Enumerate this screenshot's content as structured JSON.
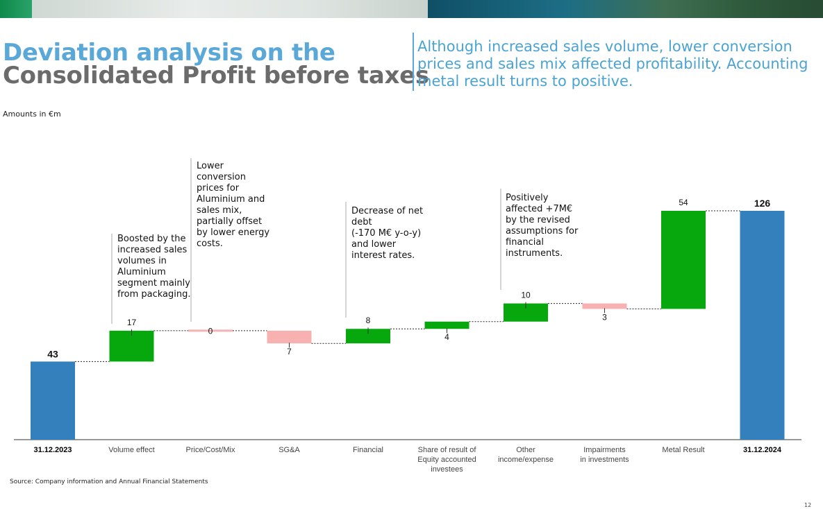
{
  "title": {
    "line1": "Deviation analysis on the",
    "line2": "Consolidated Profit before taxes"
  },
  "subtitle": "Although increased sales volume, lower conversion prices and sales mix affected profitability. Accounting metal result turns to positive.",
  "units_note": "Amounts in €m",
  "source": "Source: Company information and Annual Financial Statements",
  "page_number": "12",
  "colors": {
    "total": "#3480bd",
    "increase": "#06a80e",
    "decrease": "#f7b1b1",
    "title_blue": "#5aa8d8",
    "title_grey": "#6b6b6b"
  },
  "annotations": [
    {
      "text": "Boosted by the\nincreased sales\nvolumes in\nAluminium\nsegment mainly\nfrom packaging."
    },
    {
      "text": "Lower\nconversion\nprices for\nAluminium and\nsales mix,\npartially offset\nby lower energy\ncosts."
    },
    {
      "text": "Decrease of net\ndebt\n(-170 M€ y-o-y)\nand lower\ninterest rates."
    },
    {
      "text": "Positively\naffected +7M€\nby the revised\nassumptions for\nfinancial\ninstruments."
    }
  ],
  "chart_data": {
    "type": "waterfall",
    "unit": "€m",
    "ylim": [
      0,
      130
    ],
    "categories": [
      "31.12.2023",
      "Volume effect",
      "Price/Cost/Mix",
      "SG&A",
      "Financial",
      "Share of result of Equity accounted investees",
      "Other income/expense",
      "Impairments in investments",
      "Metal Result",
      "31.12.2024"
    ],
    "category_labels": [
      [
        "31.12.2023"
      ],
      [
        "Volume effect"
      ],
      [
        "Price/Cost/Mix"
      ],
      [
        "SG&A"
      ],
      [
        "Financial"
      ],
      [
        "Share of result of",
        "Equity accounted",
        "investees"
      ],
      [
        "Other",
        "income/expense"
      ],
      [
        "Impairments",
        "in investments"
      ],
      [
        "Metal Result"
      ],
      [
        "31.12.2024"
      ]
    ],
    "kinds": [
      "total",
      "increase",
      "decrease",
      "decrease",
      "increase",
      "increase",
      "increase",
      "decrease",
      "increase",
      "total"
    ],
    "values": [
      43,
      17,
      0,
      -7,
      8,
      4,
      10,
      -3,
      54,
      126
    ],
    "value_labels": [
      "43",
      "17",
      "0",
      "7",
      "8",
      "4",
      "10",
      "3",
      "54",
      "126"
    ]
  }
}
